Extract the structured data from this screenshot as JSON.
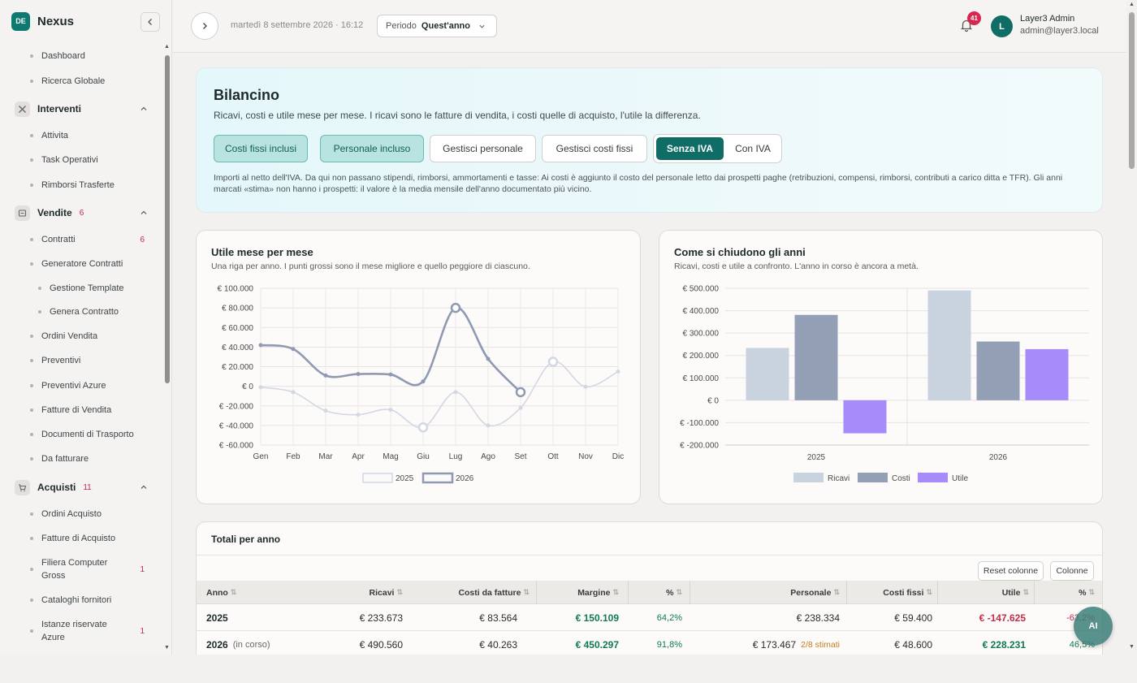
{
  "brand": {
    "logo": "DE",
    "name": "Nexus"
  },
  "sidebar": {
    "top_items": [
      {
        "label": "Dashboard"
      },
      {
        "label": "Ricerca Globale"
      }
    ],
    "sections": [
      {
        "label": "Interventi",
        "count": "",
        "icon": "tools-icon",
        "items": [
          {
            "label": "Attivita",
            "count": ""
          },
          {
            "label": "Task Operativi",
            "count": ""
          },
          {
            "label": "Rimborsi Trasferte",
            "count": ""
          }
        ]
      },
      {
        "label": "Vendite",
        "count": "6",
        "icon": "receipt-icon",
        "items": [
          {
            "label": "Contratti",
            "count": "6"
          },
          {
            "label": "Generatore Contratti",
            "count": ""
          },
          {
            "label": "Gestione Template",
            "count": ""
          },
          {
            "label": "Genera Contratto",
            "count": ""
          },
          {
            "label": "Ordini Vendita",
            "count": ""
          },
          {
            "label": "Preventivi",
            "count": ""
          },
          {
            "label": "Preventivi Azure",
            "count": ""
          },
          {
            "label": "Fatture di Vendita",
            "count": ""
          },
          {
            "label": "Documenti di Trasporto",
            "count": ""
          },
          {
            "label": "Da fatturare",
            "count": ""
          }
        ]
      },
      {
        "label": "Acquisti",
        "count": "11",
        "icon": "cart-icon",
        "items": [
          {
            "label": "Ordini Acquisto",
            "count": ""
          },
          {
            "label": "Fatture di Acquisto",
            "count": ""
          },
          {
            "label": "Filiera Computer Gross",
            "count": "1"
          },
          {
            "label": "Cataloghi fornitori",
            "count": ""
          },
          {
            "label": "Istanze riservate Azure",
            "count": "1"
          }
        ]
      }
    ]
  },
  "header": {
    "datetime": "martedì 8 settembre 2026 · 16:12",
    "period_label": "Periodo",
    "period_value": "Quest'anno",
    "notifications": "41",
    "user_initial": "L",
    "user_name": "Layer3 Admin",
    "user_email": "admin@layer3.local"
  },
  "hero": {
    "title": "Bilancino",
    "subtitle": "Ricavi, costi e utile mese per mese. I ricavi sono le fatture di vendita, i costi quelle di acquisto, l'utile la differenza.",
    "toggles": [
      {
        "label": "Costi fissi inclusi",
        "active": true
      },
      {
        "label": "Personale incluso",
        "active": true
      },
      {
        "label": "Gestisci personale",
        "active": false
      },
      {
        "label": "Gestisci costi fissi",
        "active": false
      }
    ],
    "vat_on": "Senza IVA",
    "vat_off": "Con IVA",
    "note": "Importi al netto dell'IVA. Da qui non passano stipendi, rimborsi, ammortamenti e tasse: Ai costi è aggiunto il costo del personale letto dai prospetti paghe (retribuzioni, compensi, rimborsi, contributi a carico ditta e TFR). Gli anni marcati «stima» non hanno i prospetti: il valore è la media mensile dell'anno documentato più vicino."
  },
  "charts": {
    "line_title": "Utile mese per mese",
    "line_sub": "Una riga per anno. I punti grossi sono il mese migliore e quello peggiore di ciascuno.",
    "bar_title": "Come si chiudono gli anni",
    "bar_sub": "Ricavi, costi e utile a confronto. L'anno in corso è ancora a metà."
  },
  "chart_data": [
    {
      "type": "line",
      "title": "Utile mese per mese",
      "x": [
        "Gen",
        "Feb",
        "Mar",
        "Apr",
        "Mag",
        "Giu",
        "Lug",
        "Ago",
        "Set",
        "Ott",
        "Nov",
        "Dic"
      ],
      "y_ticks": [
        "€ 100.000",
        "€ 80.000",
        "€ 60.000",
        "€ 40.000",
        "€ 20.000",
        "€ 0",
        "€ -20.000",
        "€ -40.000",
        "€ -60.000"
      ],
      "ylim": [
        -60000,
        100000
      ],
      "series": [
        {
          "name": "2025",
          "color": "#d4d7e3",
          "values": [
            -1000,
            -6000,
            -25000,
            -29000,
            -24000,
            -42000,
            -6000,
            -40000,
            -22000,
            25000,
            -500,
            15000
          ]
        },
        {
          "name": "2026",
          "color": "#8f9ab2",
          "values": [
            42000,
            38000,
            11000,
            12500,
            12000,
            5000,
            80000,
            28000,
            -6000,
            null,
            null,
            null
          ]
        }
      ],
      "grid": true,
      "legend": "bottom"
    },
    {
      "type": "bar",
      "title": "Come si chiudono gli anni",
      "categories": [
        "2025",
        "2026"
      ],
      "y_ticks": [
        "€ 500.000",
        "€ 400.000",
        "€ 300.000",
        "€ 200.000",
        "€ 100.000",
        "€ 0",
        "€ -100.000",
        "€ -200.000"
      ],
      "ylim": [
        -200000,
        500000
      ],
      "series": [
        {
          "name": "Ricavi",
          "color": "#c9d3e0",
          "values": [
            233673,
            490560
          ]
        },
        {
          "name": "Costi",
          "color": "#939fb5",
          "values": [
            381298,
            262329
          ]
        },
        {
          "name": "Utile",
          "color": "#a78bfa",
          "values": [
            -147625,
            228231
          ]
        }
      ],
      "grid": true,
      "legend": "bottom"
    }
  ],
  "table": {
    "title": "Totali per anno",
    "reset_label": "Reset colonne",
    "columns_label": "Colonne",
    "headers": [
      "Anno",
      "Ricavi",
      "Costi da fatture",
      "Margine",
      "%",
      "Personale",
      "Costi fissi",
      "Utile",
      "%"
    ],
    "rows": [
      {
        "anno": "2025",
        "note": "",
        "ricavi": "€ 233.673",
        "costi": "€ 83.564",
        "margine": "€ 150.109",
        "pct1": "64,2%",
        "personale": "€ 238.334",
        "stima": "",
        "fissi": "€ 59.400",
        "utile": "€ -147.625",
        "pct2": "-63,2%"
      },
      {
        "anno": "2026",
        "note": "(in corso)",
        "ricavi": "€ 490.560",
        "costi": "€ 40.263",
        "margine": "€ 450.297",
        "pct1": "91,8%",
        "personale": "€ 173.467",
        "stima": "2/8 stimati",
        "fissi": "€ 48.600",
        "utile": "€ 228.231",
        "pct2": "46,5%"
      }
    ]
  },
  "ai_button": "AI"
}
